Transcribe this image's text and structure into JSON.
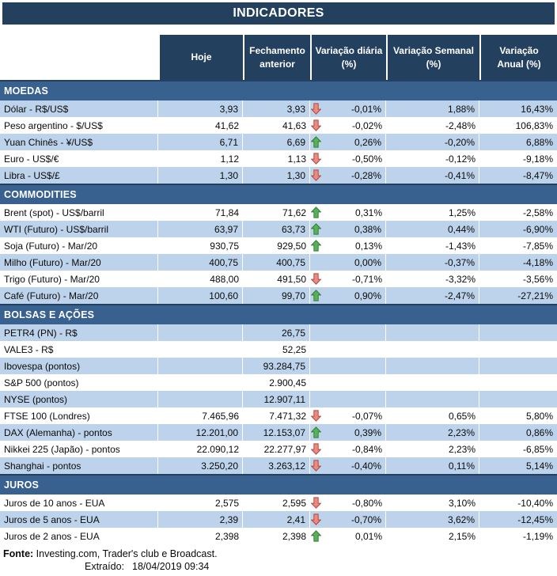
{
  "title": "INDICADORES",
  "columns": [
    "Hoje",
    "Fechamento\nanterior",
    "Variação diária\n(%)",
    "Variação Semanal\n(%)",
    "Variação\nAnual (%)"
  ],
  "colors": {
    "navy": "#24405F",
    "steel": "#38618F",
    "stripe": "#BDD3EB",
    "up_fill": "#58B158",
    "up_stroke": "#2F7D32",
    "down_fill": "#E98B80",
    "down_stroke": "#B6443C"
  },
  "sections": [
    {
      "id": "moedas",
      "name": "MOEDAS",
      "rows": [
        {
          "label": "Dólar - R$/US$",
          "hoje": "3,93",
          "fechamento": "3,93",
          "arrow": "down",
          "var_diaria": "-0,01%",
          "var_semanal": "1,88%",
          "var_anual": "16,43%"
        },
        {
          "label": "Peso argentino - $/US$",
          "hoje": "41,62",
          "fechamento": "41,63",
          "arrow": "down",
          "var_diaria": "-0,02%",
          "var_semanal": "-2,48%",
          "var_anual": "106,83%"
        },
        {
          "label": "Yuan Chinês - ¥/US$",
          "hoje": "6,71",
          "fechamento": "6,69",
          "arrow": "up",
          "var_diaria": "0,26%",
          "var_semanal": "-0,20%",
          "var_anual": "6,88%"
        },
        {
          "label": "Euro - US$/€",
          "hoje": "1,12",
          "fechamento": "1,13",
          "arrow": "down",
          "var_diaria": "-0,50%",
          "var_semanal": "-0,12%",
          "var_anual": "-9,18%"
        },
        {
          "label": "Libra - US$/£",
          "hoje": "1,30",
          "fechamento": "1,30",
          "arrow": "down",
          "var_diaria": "-0,28%",
          "var_semanal": "-0,41%",
          "var_anual": "-8,47%"
        }
      ]
    },
    {
      "id": "commodities",
      "name": "COMMODITIES",
      "rows": [
        {
          "label": "Brent (spot) - US$/barril",
          "hoje": "71,84",
          "fechamento": "71,62",
          "arrow": "up",
          "var_diaria": "0,31%",
          "var_semanal": "1,25%",
          "var_anual": "-2,58%"
        },
        {
          "label": "WTI (Futuro) - US$/barril",
          "hoje": "63,97",
          "fechamento": "63,73",
          "arrow": "up",
          "var_diaria": "0,38%",
          "var_semanal": "0,44%",
          "var_anual": "-6,90%"
        },
        {
          "label": "Soja (Futuro) - Mar/20",
          "hoje": "930,75",
          "fechamento": "929,50",
          "arrow": "up",
          "var_diaria": "0,13%",
          "var_semanal": "-1,43%",
          "var_anual": "-7,85%"
        },
        {
          "label": "Milho (Futuro) - Mar/20",
          "hoje": "400,75",
          "fechamento": "400,75",
          "arrow": null,
          "var_diaria": "0,00%",
          "var_semanal": "-0,37%",
          "var_anual": "-4,18%"
        },
        {
          "label": "Trigo (Futuro) - Mar/20",
          "hoje": "488,00",
          "fechamento": "491,50",
          "arrow": "down",
          "var_diaria": "-0,71%",
          "var_semanal": "-3,32%",
          "var_anual": "-3,56%"
        },
        {
          "label": "Café (Futuro) - Mar/20",
          "hoje": "100,60",
          "fechamento": "99,70",
          "arrow": "up",
          "var_diaria": "0,90%",
          "var_semanal": "-2,47%",
          "var_anual": "-27,21%"
        }
      ]
    },
    {
      "id": "bolsas-e-acoes",
      "name": "BOLSAS E AÇÕES",
      "rows": [
        {
          "label": "PETR4 (PN) - R$",
          "hoje": "",
          "fechamento": "26,75",
          "arrow": null,
          "var_diaria": "",
          "var_semanal": "",
          "var_anual": ""
        },
        {
          "label": "VALE3 - R$",
          "hoje": "",
          "fechamento": "52,25",
          "arrow": null,
          "var_diaria": "",
          "var_semanal": "",
          "var_anual": ""
        },
        {
          "label": "Ibovespa (pontos)",
          "hoje": "",
          "fechamento": "93.284,75",
          "arrow": null,
          "var_diaria": "",
          "var_semanal": "",
          "var_anual": ""
        },
        {
          "label": "S&P 500 (pontos)",
          "hoje": "",
          "fechamento": "2.900,45",
          "arrow": null,
          "var_diaria": "",
          "var_semanal": "",
          "var_anual": ""
        },
        {
          "label": "NYSE (pontos)",
          "hoje": "",
          "fechamento": "12.907,11",
          "arrow": null,
          "var_diaria": "",
          "var_semanal": "",
          "var_anual": ""
        },
        {
          "label": "FTSE 100 (Londres)",
          "hoje": "7.465,96",
          "fechamento": "7.471,32",
          "arrow": "down",
          "var_diaria": "-0,07%",
          "var_semanal": "0,65%",
          "var_anual": "5,80%"
        },
        {
          "label": "DAX (Alemanha) - pontos",
          "hoje": "12.201,00",
          "fechamento": "12.153,07",
          "arrow": "up",
          "var_diaria": "0,39%",
          "var_semanal": "2,23%",
          "var_anual": "0,86%"
        },
        {
          "label": "Nikkei 225 (Japão) - pontos",
          "hoje": "22.090,12",
          "fechamento": "22.277,97",
          "arrow": "down",
          "var_diaria": "-0,84%",
          "var_semanal": "2,23%",
          "var_anual": "-6,85%"
        },
        {
          "label": "Shanghai - pontos",
          "hoje": "3.250,20",
          "fechamento": "3.263,12",
          "arrow": "down",
          "var_diaria": "-0,40%",
          "var_semanal": "0,11%",
          "var_anual": "5,14%"
        }
      ]
    },
    {
      "id": "juros",
      "name": "JUROS",
      "rows": [
        {
          "label": "Juros de 10 anos - EUA",
          "hoje": "2,575",
          "fechamento": "2,595",
          "arrow": "down",
          "var_diaria": "-0,80%",
          "var_semanal": "3,10%",
          "var_anual": "-10,40%"
        },
        {
          "label": "Juros de 5 anos - EUA",
          "hoje": "2,39",
          "fechamento": "2,41",
          "arrow": "down",
          "var_diaria": "-0,70%",
          "var_semanal": "3,62%",
          "var_anual": "-12,45%"
        },
        {
          "label": "Juros de 2 anos - EUA",
          "hoje": "2,398",
          "fechamento": "2,398",
          "arrow": "up",
          "var_diaria": "0,01%",
          "var_semanal": "2,15%",
          "var_anual": "-1,19%"
        }
      ]
    }
  ],
  "footer": {
    "fonte_label": "Fonte:",
    "fonte_text": " Investing.com, Trader's club e Broadcast.",
    "extraido_label": "Extraído:",
    "extraido_value": "18/04/2019 09:34"
  }
}
